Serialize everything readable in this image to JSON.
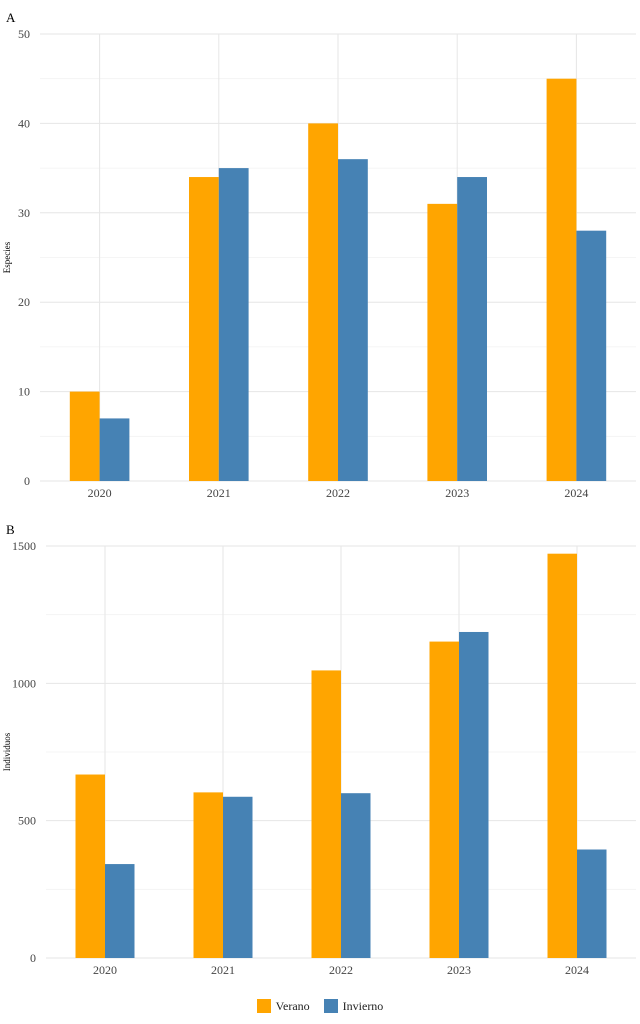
{
  "colors": {
    "verano": "#FFA500",
    "invierno": "#4682B4"
  },
  "legend": {
    "verano": "Verano",
    "invierno": "Invierno"
  },
  "chart_data": [
    {
      "type": "bar",
      "panel": "A",
      "ylabel": "Especies",
      "xlabel": "",
      "categories": [
        "2020",
        "2021",
        "2022",
        "2023",
        "2024"
      ],
      "ylim": [
        0,
        50
      ],
      "yticks": [
        0,
        10,
        20,
        30,
        40,
        50
      ],
      "series": [
        {
          "name": "Verano",
          "values": [
            10,
            34,
            40,
            31,
            45
          ]
        },
        {
          "name": "Invierno",
          "values": [
            7,
            35,
            36,
            34,
            28
          ]
        }
      ],
      "grid": true,
      "legend_position": "bottom"
    },
    {
      "type": "bar",
      "panel": "B",
      "ylabel": "Individuos",
      "xlabel": "",
      "categories": [
        "2020",
        "2021",
        "2022",
        "2023",
        "2024"
      ],
      "ylim": [
        0,
        1500
      ],
      "yticks": [
        0,
        500,
        1000,
        1500
      ],
      "series": [
        {
          "name": "Verano",
          "values": [
            668,
            603,
            1047,
            1152,
            1472
          ]
        },
        {
          "name": "Invierno",
          "values": [
            342,
            587,
            600,
            1187,
            395
          ]
        }
      ],
      "grid": true,
      "legend_position": "bottom"
    }
  ]
}
